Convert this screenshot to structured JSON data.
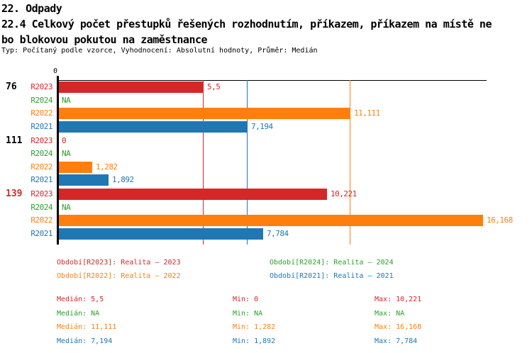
{
  "header": {
    "line1": "22. Odpady",
    "line2": "22.4 Celkový počet přestupků řešených rozhodnutím, příkazem, příkazem na místě ne",
    "line3": "bo blokovou pokutou na zaměstnance",
    "meta": "Typ: Počítaný podle vzorce, Vyhodnocení: Absolutní hodnoty, Průměr: Medián"
  },
  "colors": {
    "R2023": "#d62728",
    "R2024": "#2ca02c",
    "R2022": "#ff7f0e",
    "R2021": "#1f77b4",
    "axis": "#000000",
    "group_label_default": "#000000",
    "group_label_highlight": "#d62728"
  },
  "chart_data": {
    "type": "bar",
    "orientation": "horizontal",
    "x_axis": {
      "origin_label": "0",
      "xlim": [
        0,
        18
      ],
      "grid": "median_reference_lines"
    },
    "series_order": [
      "R2023",
      "R2024",
      "R2022",
      "R2021"
    ],
    "series_labels": {
      "R2023": "R2023",
      "R2024": "R2024",
      "R2022": "R2022",
      "R2021": "R2021"
    },
    "groups": [
      {
        "label": "76",
        "highlight": false,
        "values": {
          "R2023": 5.5,
          "R2024": null,
          "R2022": 11.111,
          "R2021": 7.194
        },
        "displays": {
          "R2023": "5,5",
          "R2024": "NA",
          "R2022": "11,111",
          "R2021": "7,194"
        }
      },
      {
        "label": "111",
        "highlight": false,
        "values": {
          "R2023": 0,
          "R2024": null,
          "R2022": 1.282,
          "R2021": 1.892
        },
        "displays": {
          "R2023": "0",
          "R2024": "NA",
          "R2022": "1,282",
          "R2021": "1,892"
        }
      },
      {
        "label": "139",
        "highlight": true,
        "values": {
          "R2023": 10.221,
          "R2024": null,
          "R2022": 16.168,
          "R2021": 7.784
        },
        "displays": {
          "R2023": "10,221",
          "R2024": "NA",
          "R2022": "16,168",
          "R2021": "7,784"
        }
      }
    ],
    "median_lines": [
      {
        "series": "R2023",
        "value": 5.5
      },
      {
        "series": "R2021",
        "value": 7.194
      },
      {
        "series": "R2022",
        "value": 11.111
      }
    ]
  },
  "legend": {
    "items": [
      {
        "series": "R2023",
        "text": "Období[R2023]: Realita – 2023"
      },
      {
        "series": "R2024",
        "text": "Období[R2024]: Realita – 2024"
      },
      {
        "series": "R2022",
        "text": "Období[R2022]: Realita – 2022"
      },
      {
        "series": "R2021",
        "text": "Období[R2021]: Realita – 2021"
      }
    ]
  },
  "stats": {
    "median_label": "Medián",
    "min_label": "Min",
    "max_label": "Max",
    "rows": [
      {
        "series": "R2023",
        "median": "5,5",
        "min": "0",
        "max": "10,221"
      },
      {
        "series": "R2024",
        "median": "NA",
        "min": "NA",
        "max": "NA"
      },
      {
        "series": "R2022",
        "median": "11,111",
        "min": "1,282",
        "max": "16,168"
      },
      {
        "series": "R2021",
        "median": "7,194",
        "min": "1,892",
        "max": "7,784"
      }
    ]
  }
}
